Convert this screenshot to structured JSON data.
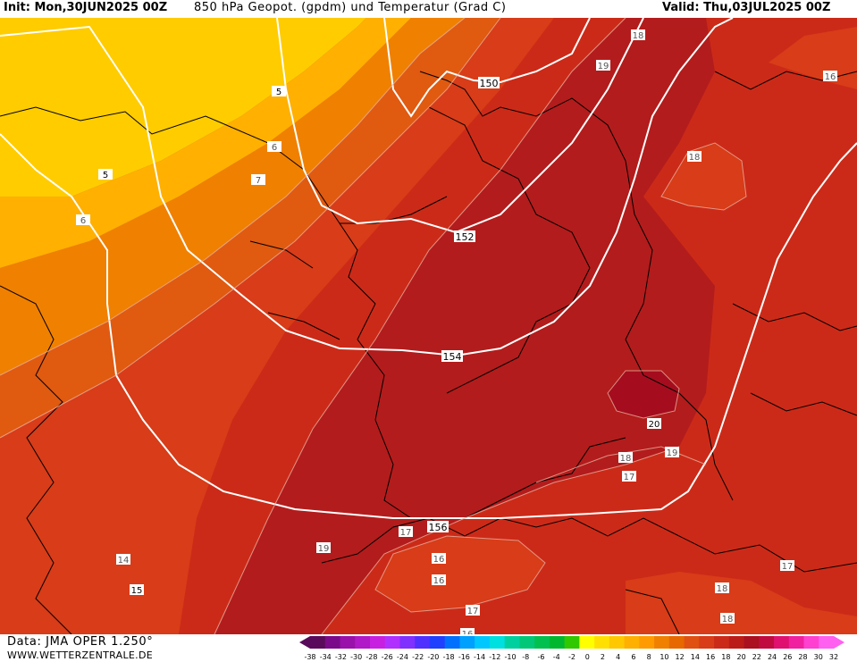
{
  "header": {
    "init": "Init: Mon,30JUN2025 00Z",
    "title": "850 hPa Geopot. (gpdm) und Temperatur (Grad C)",
    "valid": "Valid: Thu,03JUL2025 00Z"
  },
  "footer": {
    "data_source": "Data: JMA OPER 1.250°",
    "website": "WWW.WETTERZENTRALE.DE"
  },
  "geopotential_labels": [
    "150",
    "152",
    "154",
    "156"
  ],
  "temperature_labels": [
    "5",
    "5",
    "6",
    "6",
    "7",
    "14",
    "15",
    "16",
    "16",
    "16",
    "16",
    "17",
    "17",
    "17",
    "17",
    "18",
    "18",
    "18",
    "18",
    "18",
    "19",
    "19",
    "19",
    "20"
  ],
  "colorbar": {
    "ticks": [
      "-38",
      "-34",
      "-32",
      "-30",
      "-28",
      "-26",
      "-24",
      "-22",
      "-20",
      "-18",
      "-16",
      "-14",
      "-12",
      "-10",
      "-8",
      "-6",
      "-4",
      "-2",
      "0",
      "2",
      "4",
      "6",
      "8",
      "10",
      "12",
      "14",
      "16",
      "18",
      "20",
      "22",
      "24",
      "26",
      "28",
      "30",
      "32"
    ],
    "colors": [
      "#5a0a5a",
      "#7a0a8a",
      "#9a10aa",
      "#b018c8",
      "#c820e0",
      "#b030ff",
      "#8030ff",
      "#5030ff",
      "#2040ff",
      "#0070ff",
      "#00a0ff",
      "#00c8ff",
      "#00e0e0",
      "#00d0a0",
      "#00c878",
      "#00c050",
      "#00b830",
      "#30c800",
      "#ffff00",
      "#ffe000",
      "#ffc800",
      "#ffb000",
      "#ff9a00",
      "#f08000",
      "#e86800",
      "#e05010",
      "#d83c18",
      "#cc2a18",
      "#bc1c18",
      "#aa1020",
      "#c00a40",
      "#e01070",
      "#f020a0",
      "#ff40d0",
      "#ff60f0"
    ]
  },
  "colors": {
    "yellow": "#ffcc00",
    "light_orange": "#ffb000",
    "orange": "#f08000",
    "dark_orange": "#e05a10",
    "red_orange": "#d83c18",
    "red": "#cc2a18",
    "dark_red": "#b31c1c",
    "maroon": "#a50d1e"
  }
}
